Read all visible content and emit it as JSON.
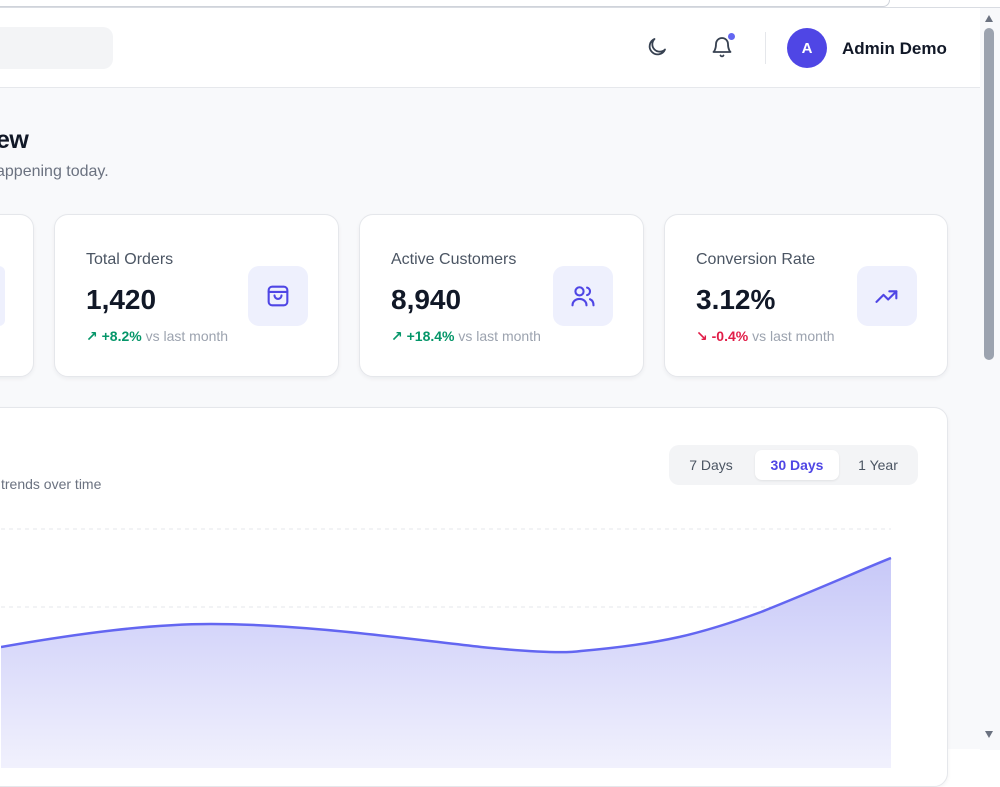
{
  "header": {
    "search_placeholder": "",
    "user_initial": "A",
    "user_name": "Admin Demo",
    "icons": [
      "moon-icon",
      "bell-icon"
    ],
    "notification_dot_color": "#6366f1"
  },
  "page": {
    "title_fragment": "ew",
    "subtitle_fragment": "appening today."
  },
  "stats": [
    {
      "label": "Total Orders",
      "value": "1,420",
      "change": "+8.2%",
      "change_direction": "up",
      "suffix": "vs last month",
      "icon": "shopping-bag-icon"
    },
    {
      "label": "Active Customers",
      "value": "8,940",
      "change": "+18.4%",
      "change_direction": "up",
      "suffix": "vs last month",
      "icon": "users-icon"
    },
    {
      "label": "Conversion Rate",
      "value": "3.12%",
      "change": "-0.4%",
      "change_direction": "down",
      "suffix": "vs last month",
      "icon": "trending-up-icon"
    }
  ],
  "chart_panel": {
    "subtitle_fragment": "trends over time",
    "ranges": [
      "7 Days",
      "30 Days",
      "1 Year"
    ],
    "active_range": "30 Days"
  },
  "colors": {
    "accent": "#4f46e5",
    "line": "#6366f1",
    "area": "#dcdcfb",
    "positive": "#059669",
    "negative": "#e11d48"
  }
}
